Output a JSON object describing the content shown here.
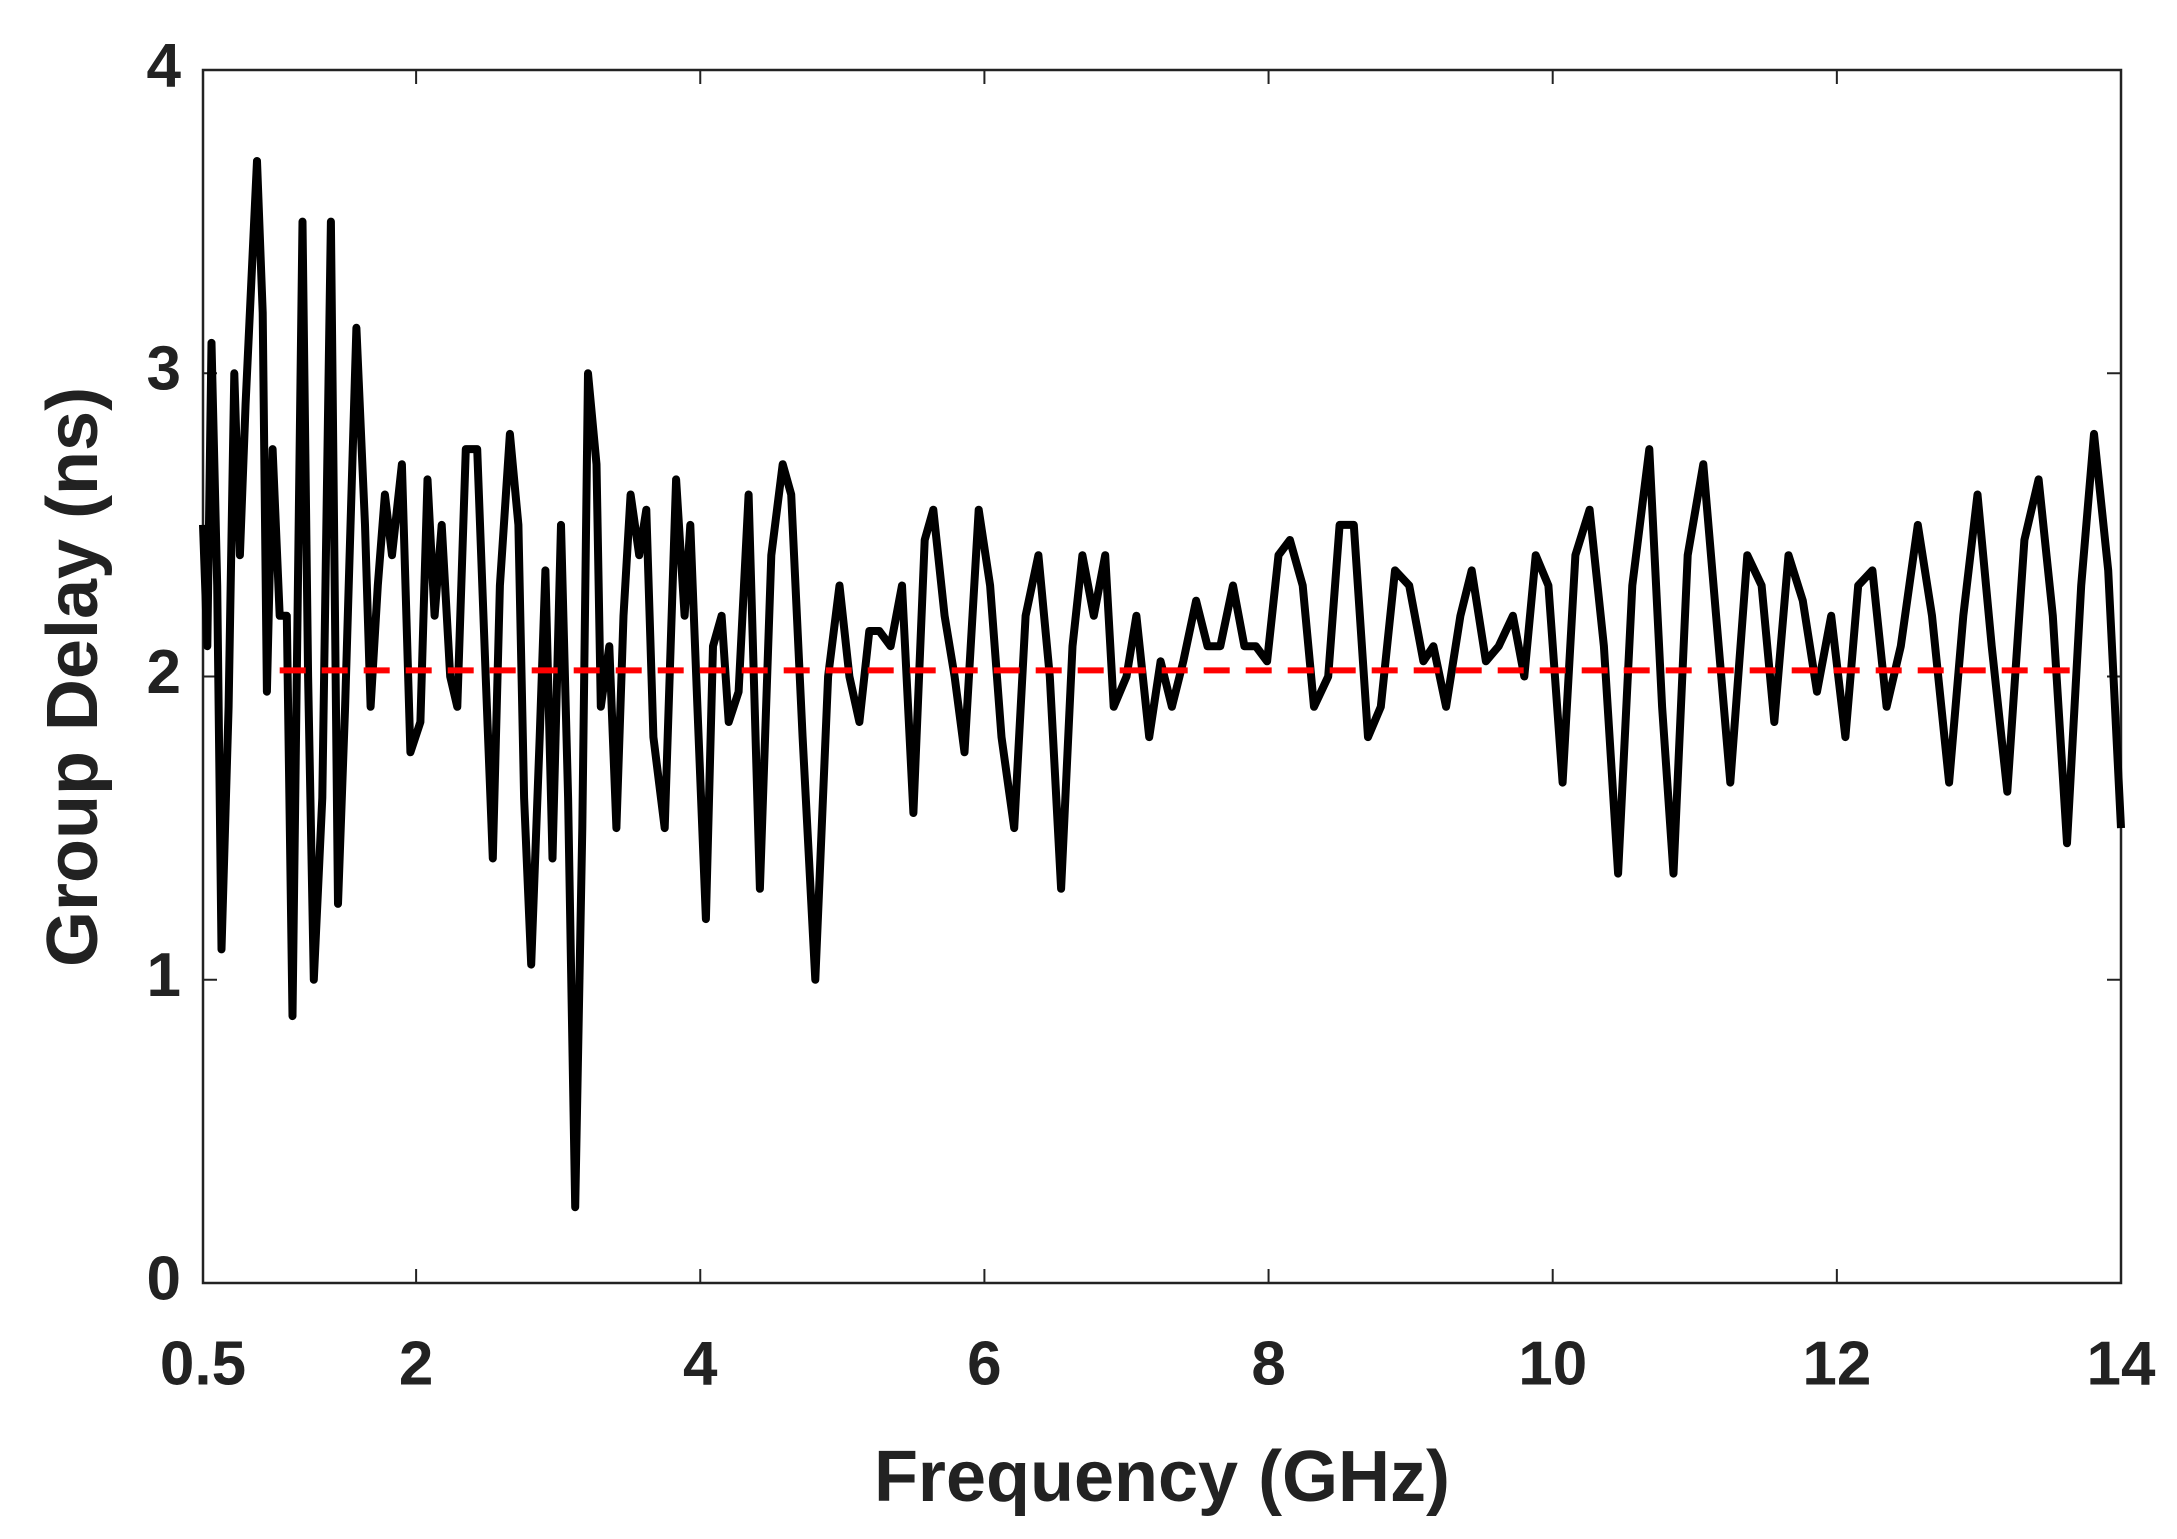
{
  "chart_data": {
    "type": "line",
    "xlabel": "Frequency (GHz)",
    "ylabel": "Group Delay (ns)",
    "xlim": [
      0.5,
      14
    ],
    "ylim": [
      0,
      4
    ],
    "xticks": [
      0.5,
      2,
      4,
      6,
      8,
      10,
      12,
      14
    ],
    "yticks": [
      0,
      1,
      2,
      3,
      4
    ],
    "grid": false,
    "box": true,
    "series": [
      {
        "color": "#000000",
        "linestyle": "solid",
        "x": [
          0.5,
          0.53,
          0.56,
          0.6,
          0.63,
          0.68,
          0.72,
          0.76,
          0.8,
          0.84,
          0.88,
          0.92,
          0.95,
          0.99,
          1.04,
          1.09,
          1.13,
          1.2,
          1.24,
          1.28,
          1.34,
          1.4,
          1.45,
          1.5,
          1.58,
          1.64,
          1.68,
          1.73,
          1.78,
          1.83,
          1.9,
          1.96,
          2.03,
          2.08,
          2.13,
          2.18,
          2.24,
          2.29,
          2.35,
          2.43,
          2.49,
          2.54,
          2.59,
          2.66,
          2.72,
          2.76,
          2.81,
          2.87,
          2.91,
          2.96,
          3.02,
          3.07,
          3.12,
          3.17,
          3.21,
          3.27,
          3.3,
          3.36,
          3.41,
          3.46,
          3.51,
          3.57,
          3.62,
          3.67,
          3.75,
          3.83,
          3.89,
          3.93,
          3.98,
          4.04,
          4.09,
          4.15,
          4.2,
          4.27,
          4.34,
          4.42,
          4.5,
          4.58,
          4.64,
          4.72,
          4.81,
          4.9,
          4.98,
          5.05,
          5.12,
          5.19,
          5.26,
          5.34,
          5.42,
          5.5,
          5.58,
          5.64,
          5.72,
          5.79,
          5.86,
          5.96,
          6.04,
          6.12,
          6.21,
          6.29,
          6.38,
          6.46,
          6.54,
          6.62,
          6.69,
          6.77,
          6.85,
          6.91,
          7.0,
          7.07,
          7.16,
          7.24,
          7.32,
          7.4,
          7.49,
          7.57,
          7.66,
          7.75,
          7.83,
          7.91,
          7.99,
          8.07,
          8.15,
          8.24,
          8.32,
          8.42,
          8.5,
          8.6,
          8.7,
          8.79,
          8.89,
          8.99,
          9.09,
          9.16,
          9.25,
          9.35,
          9.43,
          9.53,
          9.62,
          9.72,
          9.8,
          9.88,
          9.97,
          10.07,
          10.16,
          10.26,
          10.36,
          10.46,
          10.56,
          10.68,
          10.77,
          10.85,
          10.95,
          11.06,
          11.15,
          11.25,
          11.37,
          11.47,
          11.56,
          11.66,
          11.76,
          11.86,
          11.96,
          12.06,
          12.15,
          12.25,
          12.35,
          12.45,
          12.57,
          12.67,
          12.79,
          12.89,
          12.99,
          13.09,
          13.2,
          13.32,
          13.42,
          13.52,
          13.62,
          13.72,
          13.81,
          13.91,
          14.0
        ],
        "values": [
          2.5,
          2.1,
          3.1,
          2.3,
          1.1,
          1.9,
          3.0,
          2.4,
          2.9,
          3.3,
          3.7,
          3.2,
          1.95,
          2.75,
          2.2,
          2.2,
          0.88,
          3.5,
          2.0,
          1.0,
          1.6,
          3.5,
          1.25,
          1.9,
          3.15,
          2.5,
          1.9,
          2.3,
          2.6,
          2.4,
          2.7,
          1.75,
          1.85,
          2.65,
          2.2,
          2.5,
          2.0,
          1.9,
          2.75,
          2.75,
          2.0,
          1.4,
          2.3,
          2.8,
          2.5,
          1.6,
          1.05,
          1.8,
          2.35,
          1.4,
          2.5,
          1.6,
          0.25,
          1.5,
          3.0,
          2.7,
          1.9,
          2.1,
          1.5,
          2.2,
          2.6,
          2.4,
          2.55,
          1.8,
          1.5,
          2.65,
          2.2,
          2.5,
          1.9,
          1.2,
          2.1,
          2.2,
          1.85,
          1.95,
          2.6,
          1.3,
          2.4,
          2.7,
          2.6,
          1.8,
          1.0,
          2.0,
          2.3,
          2.0,
          1.85,
          2.15,
          2.15,
          2.1,
          2.3,
          1.55,
          2.45,
          2.55,
          2.2,
          2.0,
          1.75,
          2.55,
          2.3,
          1.8,
          1.5,
          2.2,
          2.4,
          2.0,
          1.3,
          2.1,
          2.4,
          2.2,
          2.4,
          1.9,
          2.0,
          2.2,
          1.8,
          2.05,
          1.9,
          2.05,
          2.25,
          2.1,
          2.1,
          2.3,
          2.1,
          2.1,
          2.05,
          2.4,
          2.45,
          2.3,
          1.9,
          2.0,
          2.5,
          2.5,
          1.8,
          1.9,
          2.35,
          2.3,
          2.05,
          2.1,
          1.9,
          2.2,
          2.35,
          2.05,
          2.1,
          2.2,
          2.0,
          2.4,
          2.3,
          1.65,
          2.4,
          2.55,
          2.1,
          1.35,
          2.3,
          2.75,
          1.9,
          1.35,
          2.4,
          2.7,
          2.2,
          1.65,
          2.4,
          2.3,
          1.85,
          2.4,
          2.25,
          1.95,
          2.2,
          1.8,
          2.3,
          2.35,
          1.9,
          2.1,
          2.5,
          2.2,
          1.65,
          2.2,
          2.6,
          2.1,
          1.62,
          2.45,
          2.65,
          2.2,
          1.45,
          2.3,
          2.8,
          2.35,
          1.5
        ]
      },
      {
        "color": "#ff0000",
        "linestyle": "dashed",
        "x": [
          1.04,
          13.64
        ],
        "values": [
          2.02,
          2.02
        ]
      }
    ]
  }
}
